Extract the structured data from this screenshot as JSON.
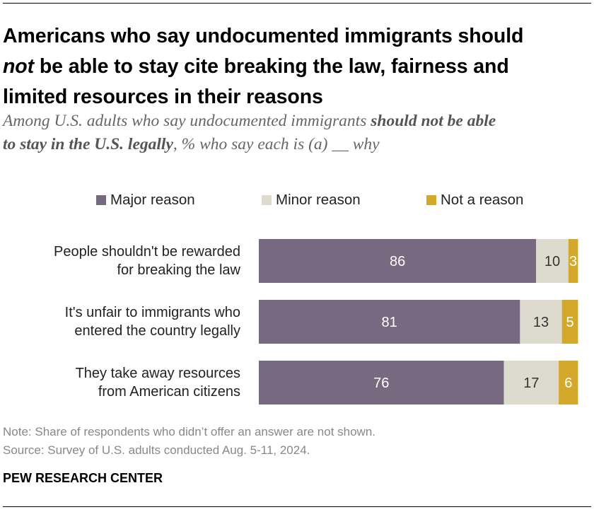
{
  "title": {
    "line1": "Americans who say undocumented immigrants should",
    "line2_emph": "not",
    "line2_rest": " be able to stay cite breaking the law, fairness and",
    "line3": "limited resources in their reasons"
  },
  "subtitle": {
    "part1": "Among U.S. adults who say undocumented immigrants ",
    "bold1": "should not be able",
    "bold2": "to stay in the U.S. legally",
    "part2": ", % who say each is (a) __ why"
  },
  "colors": {
    "major": "#776a80",
    "minor": "#dddbcd",
    "not": "#d3a82b"
  },
  "chart_data": {
    "type": "bar",
    "orientation": "horizontal",
    "stacked": true,
    "categories": [
      "People shouldn't be rewarded for breaking the law",
      "It's unfair to immigrants who entered the country legally",
      "They take away resources from American citizens"
    ],
    "category_lines": [
      [
        "People shouldn't be rewarded",
        "for breaking the law"
      ],
      [
        "It's unfair to immigrants who",
        "entered the country legally"
      ],
      [
        "They take away resources",
        "from American citizens"
      ]
    ],
    "series": [
      {
        "name": "Major reason",
        "color": "#776a80",
        "values": [
          86,
          81,
          76
        ]
      },
      {
        "name": "Minor reason",
        "color": "#dddbcd",
        "values": [
          10,
          13,
          17
        ]
      },
      {
        "name": "Not a reason",
        "color": "#d3a82b",
        "values": [
          3,
          5,
          6
        ]
      }
    ],
    "xlim": [
      0,
      100
    ],
    "grid": false,
    "legend": "top"
  },
  "notes": {
    "note": "Note: Share of respondents who didn’t offer an answer are not shown.",
    "source": "Source: Survey of U.S. adults conducted Aug. 5-11, 2024."
  },
  "org": "PEW RESEARCH CENTER"
}
